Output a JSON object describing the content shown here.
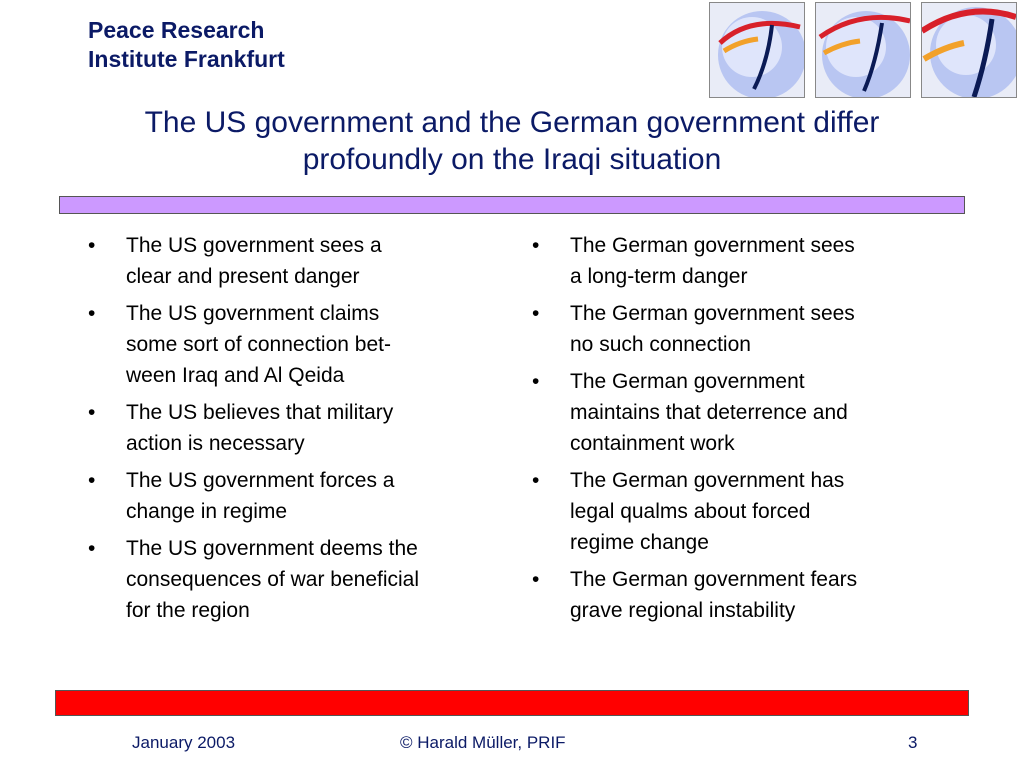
{
  "header": {
    "institute_line1": "Peace Research",
    "institute_line2": "Institute Frankfurt",
    "logo_icons": [
      "globe-logo-icon",
      "globe-logo-icon",
      "globe-logo-icon"
    ]
  },
  "title": {
    "line1": "The US government and the German government differ",
    "line2": "profoundly on the Iraqi situation"
  },
  "left_column": [
    {
      "lines": [
        "The US government sees a",
        "clear and present danger"
      ]
    },
    {
      "lines": [
        "The US government claims",
        "some sort of connection bet-",
        "ween Iraq and Al Qeida"
      ]
    },
    {
      "lines": [
        "The US believes that military",
        "action is necessary"
      ]
    },
    {
      "lines": [
        "The US government forces a",
        "change in regime"
      ]
    },
    {
      "lines": [
        "The US government deems the",
        "consequences of war beneficial",
        "for the region"
      ]
    }
  ],
  "right_column": [
    {
      "lines": [
        "The German government sees",
        "a long-term danger"
      ]
    },
    {
      "lines": [
        "The German government sees",
        "no such connection"
      ]
    },
    {
      "lines": [
        "The German government",
        "maintains that deterrence and",
        "containment work"
      ]
    },
    {
      "lines": [
        "The German government has",
        "legal qualms about forced",
        "regime change"
      ]
    },
    {
      "lines": [
        "The German government fears",
        "grave regional instability"
      ]
    }
  ],
  "bullet_glyph": "•",
  "footer": {
    "date": "January 2003",
    "copyright": "© Harald Müller, PRIF",
    "page": "3"
  },
  "colors": {
    "title_text": "#0b1a66",
    "top_bar": "#cc99ff",
    "bottom_bar": "#ff0000"
  }
}
